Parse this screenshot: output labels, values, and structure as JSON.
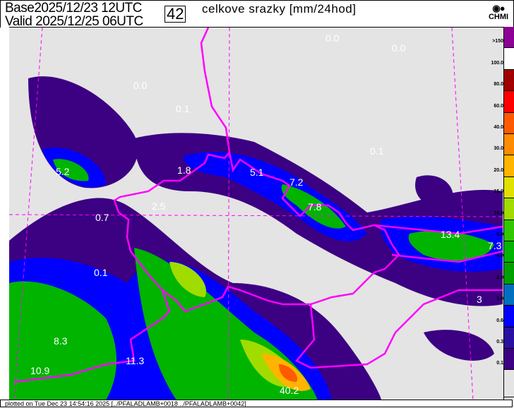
{
  "header": {
    "base_label": "Base",
    "base_time": "2025/12/23 12UTC",
    "valid_label": "Valid",
    "valid_time": "2025/12/25 06UTC",
    "forecast_hour": "42",
    "title": "celkove srazky [mm/24hod]",
    "logo_text": "CHMI"
  },
  "legend": {
    "labels": [
      ">150",
      "100.0",
      "80.0",
      "60.0",
      "40.0",
      "30.0",
      "20.0",
      "15.0",
      "10.0",
      "6.0",
      "4.0",
      "2.0",
      "1.0",
      "0.6",
      "0.3",
      "0.1"
    ],
    "colors": [
      "#8c0096",
      "#ffffff",
      "#a00000",
      "#ff0000",
      "#ff5a00",
      "#ff8c00",
      "#ffb400",
      "#e1e100",
      "#a0dc00",
      "#32c800",
      "#00b400",
      "#00a000",
      "#0070c0",
      "#0000ff",
      "#2a10a0",
      "#3c0082",
      "#e4e4e4"
    ]
  },
  "map": {
    "values": [
      "0.0",
      "0.0",
      "0.0",
      "0.1",
      "0.1",
      "5.2",
      "1.8",
      "5.1",
      "7.2",
      "7.8",
      "2.5",
      "0.7",
      "13.4",
      "7.3",
      "0.1",
      "3",
      "8.3",
      "11.3",
      "10.9",
      "40.2"
    ],
    "border_color": "#ff00ff"
  },
  "footer": {
    "text": "plotted on Tue Dec 23 14:54:16 2025 [../PFALADLAMB+0018 ../PFALADLAMB+0042]"
  }
}
